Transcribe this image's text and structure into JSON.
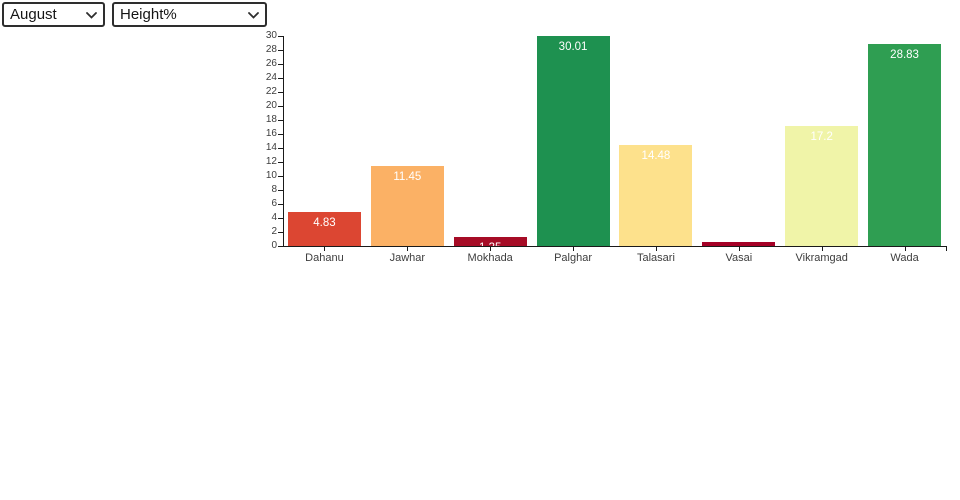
{
  "controls": {
    "month_select": {
      "selected": "August",
      "options": [
        "August"
      ]
    },
    "metric_select": {
      "selected": "Height%",
      "options": [
        "Height%"
      ]
    }
  },
  "chart_data": {
    "type": "bar",
    "title": "",
    "xlabel": "",
    "ylabel": "",
    "categories": [
      "Dahanu",
      "Jawhar",
      "Mokhada",
      "Palghar",
      "Talasari",
      "Vasai",
      "Vikramgad",
      "Wada"
    ],
    "values": [
      4.83,
      11.45,
      1.35,
      30.01,
      14.48,
      0.57,
      17.2,
      28.83
    ],
    "bar_labels": [
      "4.83",
      "11.45",
      "1.35",
      "30.01",
      "14.48",
      "",
      "17.2",
      "28.83"
    ],
    "bar_colors": [
      "#dc4632",
      "#fbb165",
      "#a60c26",
      "#1e9150",
      "#fde18c",
      "#a40026",
      "#f0f4a8",
      "#2f9e52"
    ],
    "ylim": [
      0,
      30
    ],
    "ytick_step": 2,
    "grid": false,
    "legend": "none",
    "value_label_color": "#ffffff",
    "axis_color": "#1a1a1a",
    "tick_label_color": "#3d3d3d"
  }
}
